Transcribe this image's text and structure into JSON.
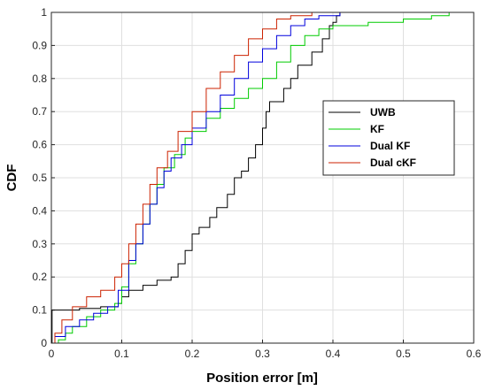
{
  "chart_data": {
    "type": "line",
    "title": "",
    "xlabel": "Position error [m]",
    "ylabel": "CDF",
    "xlim": [
      0,
      0.6
    ],
    "ylim": [
      0,
      1
    ],
    "xticks": [
      "0",
      "0.1",
      "0.2",
      "0.3",
      "0.4",
      "0.5",
      "0.6"
    ],
    "yticks": [
      "0",
      "0.1",
      "0.2",
      "0.3",
      "0.4",
      "0.5",
      "0.6",
      "0.7",
      "0.8",
      "0.9",
      "1"
    ],
    "grid": true,
    "legend_position": "right",
    "series": [
      {
        "name": "UWB",
        "color": "#000000",
        "points": [
          [
            0,
            0
          ],
          [
            0.001,
            0.1
          ],
          [
            0.04,
            0.105
          ],
          [
            0.07,
            0.11
          ],
          [
            0.095,
            0.12
          ],
          [
            0.1,
            0.14
          ],
          [
            0.11,
            0.16
          ],
          [
            0.13,
            0.175
          ],
          [
            0.15,
            0.19
          ],
          [
            0.17,
            0.2
          ],
          [
            0.18,
            0.24
          ],
          [
            0.19,
            0.28
          ],
          [
            0.2,
            0.33
          ],
          [
            0.21,
            0.35
          ],
          [
            0.225,
            0.38
          ],
          [
            0.235,
            0.41
          ],
          [
            0.25,
            0.45
          ],
          [
            0.26,
            0.5
          ],
          [
            0.27,
            0.52
          ],
          [
            0.28,
            0.56
          ],
          [
            0.29,
            0.6
          ],
          [
            0.3,
            0.65
          ],
          [
            0.305,
            0.7
          ],
          [
            0.31,
            0.73
          ],
          [
            0.33,
            0.77
          ],
          [
            0.34,
            0.8
          ],
          [
            0.35,
            0.84
          ],
          [
            0.37,
            0.88
          ],
          [
            0.385,
            0.92
          ],
          [
            0.395,
            0.96
          ],
          [
            0.4,
            0.97
          ],
          [
            0.405,
            0.99
          ],
          [
            0.41,
            1.0
          ]
        ]
      },
      {
        "name": "KF",
        "color": "#00cc00",
        "points": [
          [
            0,
            0
          ],
          [
            0.01,
            0.01
          ],
          [
            0.02,
            0.03
          ],
          [
            0.03,
            0.05
          ],
          [
            0.05,
            0.08
          ],
          [
            0.07,
            0.1
          ],
          [
            0.09,
            0.12
          ],
          [
            0.1,
            0.17
          ],
          [
            0.11,
            0.24
          ],
          [
            0.12,
            0.3
          ],
          [
            0.13,
            0.36
          ],
          [
            0.14,
            0.42
          ],
          [
            0.15,
            0.48
          ],
          [
            0.16,
            0.53
          ],
          [
            0.175,
            0.57
          ],
          [
            0.19,
            0.62
          ],
          [
            0.2,
            0.64
          ],
          [
            0.22,
            0.68
          ],
          [
            0.24,
            0.71
          ],
          [
            0.26,
            0.74
          ],
          [
            0.28,
            0.77
          ],
          [
            0.3,
            0.8
          ],
          [
            0.32,
            0.85
          ],
          [
            0.34,
            0.9
          ],
          [
            0.36,
            0.93
          ],
          [
            0.38,
            0.95
          ],
          [
            0.4,
            0.96
          ],
          [
            0.45,
            0.97
          ],
          [
            0.5,
            0.98
          ],
          [
            0.54,
            0.99
          ],
          [
            0.565,
            1.0
          ]
        ]
      },
      {
        "name": "Dual KF",
        "color": "#0000dd",
        "points": [
          [
            0,
            0
          ],
          [
            0.005,
            0.02
          ],
          [
            0.02,
            0.05
          ],
          [
            0.04,
            0.07
          ],
          [
            0.06,
            0.09
          ],
          [
            0.08,
            0.11
          ],
          [
            0.095,
            0.16
          ],
          [
            0.11,
            0.25
          ],
          [
            0.12,
            0.3
          ],
          [
            0.13,
            0.36
          ],
          [
            0.14,
            0.42
          ],
          [
            0.15,
            0.47
          ],
          [
            0.16,
            0.52
          ],
          [
            0.17,
            0.56
          ],
          [
            0.185,
            0.6
          ],
          [
            0.2,
            0.65
          ],
          [
            0.22,
            0.7
          ],
          [
            0.24,
            0.75
          ],
          [
            0.26,
            0.8
          ],
          [
            0.28,
            0.85
          ],
          [
            0.3,
            0.89
          ],
          [
            0.32,
            0.93
          ],
          [
            0.34,
            0.96
          ],
          [
            0.36,
            0.98
          ],
          [
            0.38,
            0.99
          ],
          [
            0.41,
            1.0
          ]
        ]
      },
      {
        "name": "Dual cKF",
        "color": "#cc2200",
        "points": [
          [
            0,
            0
          ],
          [
            0.005,
            0.03
          ],
          [
            0.015,
            0.07
          ],
          [
            0.03,
            0.11
          ],
          [
            0.05,
            0.14
          ],
          [
            0.07,
            0.16
          ],
          [
            0.09,
            0.2
          ],
          [
            0.1,
            0.24
          ],
          [
            0.11,
            0.3
          ],
          [
            0.12,
            0.36
          ],
          [
            0.13,
            0.42
          ],
          [
            0.14,
            0.48
          ],
          [
            0.15,
            0.53
          ],
          [
            0.165,
            0.58
          ],
          [
            0.18,
            0.64
          ],
          [
            0.2,
            0.7
          ],
          [
            0.22,
            0.77
          ],
          [
            0.24,
            0.82
          ],
          [
            0.26,
            0.87
          ],
          [
            0.28,
            0.92
          ],
          [
            0.3,
            0.95
          ],
          [
            0.32,
            0.98
          ],
          [
            0.34,
            0.99
          ],
          [
            0.37,
            1.0
          ]
        ]
      }
    ]
  }
}
